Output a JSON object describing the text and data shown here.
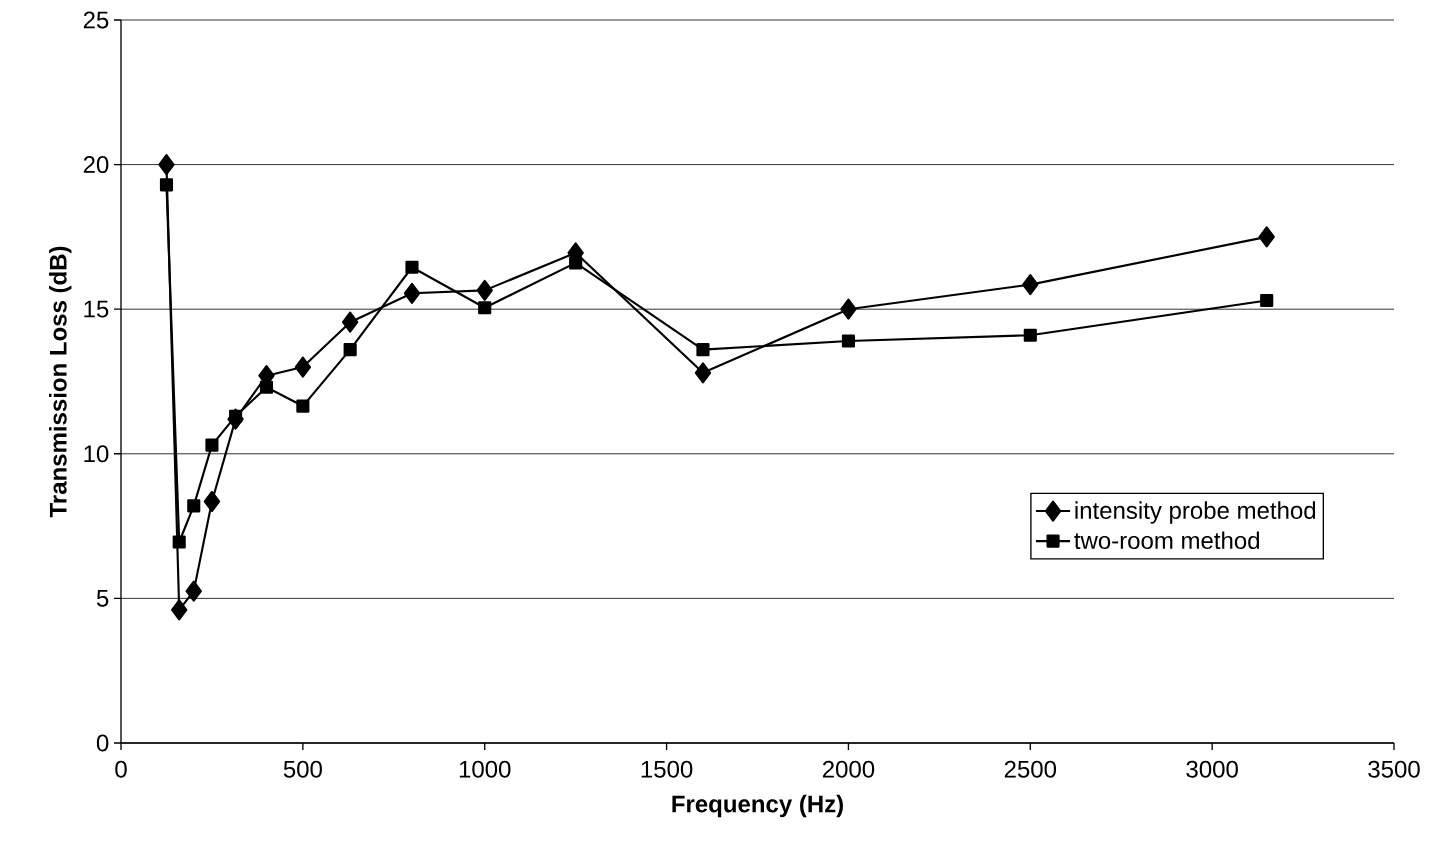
{
  "chart_data": {
    "type": "line",
    "xlabel": "Frequency (Hz)",
    "ylabel": "Transmission Loss (dB)",
    "xlim": [
      0,
      3500
    ],
    "xticks": [
      0,
      500,
      1000,
      1500,
      2000,
      2500,
      3000,
      3500
    ],
    "ylim": [
      0,
      25
    ],
    "yticks": [
      0,
      5,
      10,
      15,
      20,
      25
    ],
    "grid": "y",
    "legend": "right",
    "line_style": "solid",
    "x": [
      125,
      160,
      200,
      250,
      315,
      400,
      500,
      630,
      800,
      1000,
      1250,
      1600,
      2000,
      2500,
      3150
    ],
    "series": [
      {
        "name": "intensity probe method",
        "color": "#000000",
        "marker": "diamond",
        "values": [
          20.0,
          4.6,
          5.25,
          8.35,
          11.2,
          12.7,
          13.0,
          14.55,
          15.55,
          15.65,
          16.95,
          12.8,
          15.0,
          15.85,
          17.5
        ]
      },
      {
        "name": "two-room method",
        "color": "#000000",
        "marker": "square",
        "values": [
          19.3,
          6.95,
          8.2,
          10.3,
          11.3,
          12.3,
          11.65,
          13.6,
          16.45,
          15.05,
          16.6,
          13.6,
          13.9,
          14.1,
          15.3
        ]
      }
    ]
  }
}
